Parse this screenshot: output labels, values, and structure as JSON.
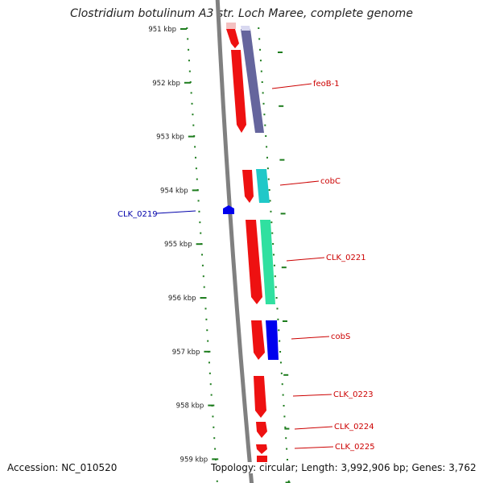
{
  "title": "Clostridium botulinum A3 str. Loch Maree, complete genome",
  "footer": {
    "accession": "Accession: NC_010520",
    "topology": "Topology: circular; Length: 3,992,906 bp; Genes: 3,762"
  },
  "colors": {
    "backbone": "#808080",
    "tick": "#1e7d1e",
    "cds": "#ee1111",
    "cds_label": "#cc0000",
    "reverse_gene": "#0000ee",
    "reverse_label": "#0000aa",
    "feature_feoB": "#4a4a8c",
    "feature_cobC": "#20c8c8",
    "feature_clk0221": "#30e0a0",
    "feature_cobS": "#0000ee"
  },
  "ruler": {
    "unit": "kbp",
    "ticks": [
      "951 kbp",
      "952 kbp",
      "953 kbp",
      "954 kbp",
      "955 kbp",
      "956 kbp",
      "957 kbp",
      "958 kbp",
      "959 kbp"
    ]
  },
  "genes": [
    {
      "label": "feoB-1",
      "strand": "forward"
    },
    {
      "label": "cobC",
      "strand": "forward"
    },
    {
      "label": "CLK_0219",
      "strand": "reverse"
    },
    {
      "label": "CLK_0221",
      "strand": "forward"
    },
    {
      "label": "cobS",
      "strand": "forward"
    },
    {
      "label": "CLK_0223",
      "strand": "forward"
    },
    {
      "label": "CLK_0224",
      "strand": "forward"
    },
    {
      "label": "CLK_0225",
      "strand": "forward"
    }
  ]
}
